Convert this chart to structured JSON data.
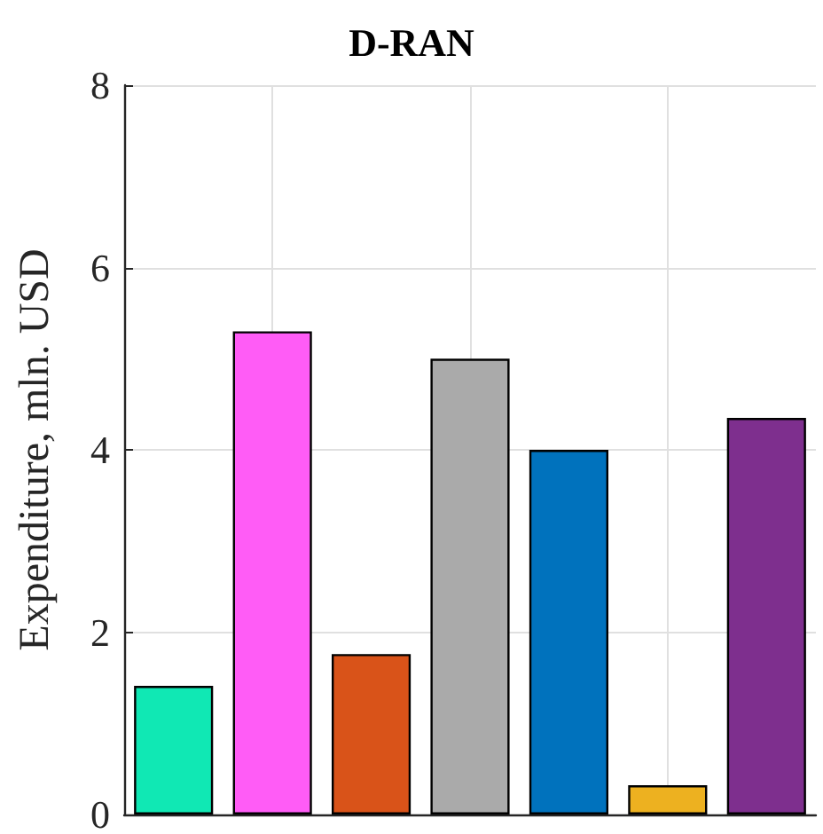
{
  "chart_data": {
    "type": "bar",
    "title": "D-RAN",
    "ylabel": "Expenditure, mln. USD",
    "categories": [
      null,
      null,
      null,
      null,
      null,
      null,
      null
    ],
    "values": [
      1.41,
      5.3,
      1.76,
      5.0,
      4.0,
      0.32,
      4.35
    ],
    "colors": [
      "#10e8b4",
      "#ff5cf6",
      "#d95319",
      "#aaaaaa",
      "#0072bd",
      "#edb120",
      "#7e2f8e"
    ],
    "ylim": [
      0,
      8
    ],
    "yticks": [
      0,
      2,
      4,
      6,
      8
    ],
    "grid": true
  }
}
